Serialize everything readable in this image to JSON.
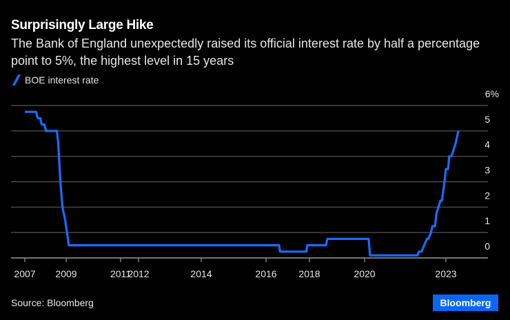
{
  "header": {
    "title": "Surprisingly Large Hike",
    "subtitle": "The Bank of England unexpectedly raised its official interest rate by half a percentage point to 5%, the highest level in 15 years"
  },
  "footer": {
    "source": "Source: Bloomberg",
    "logo": "Bloomberg"
  },
  "chart_data": {
    "type": "line",
    "title": "Surprisingly Large Hike",
    "xlabel": "",
    "ylabel": "",
    "ylim": [
      0,
      6
    ],
    "yticks": [
      0,
      1,
      2,
      3,
      4,
      5,
      6
    ],
    "ytick_labels": [
      "0",
      "1",
      "2",
      "3",
      "4",
      "5",
      "6%"
    ],
    "xticks": [
      {
        "label": "2007",
        "x": 2007.0
      },
      {
        "label": "2009",
        "x": 2009.0
      },
      {
        "label": "2011",
        "x": 2011.0
      },
      {
        "label": "2012",
        "x": 2012.0
      },
      {
        "label": "2014",
        "x": 2014.0
      },
      {
        "label": "2016",
        "x": 2016.0
      },
      {
        "label": "2018",
        "x": 2018.0
      },
      {
        "label": "2020",
        "x": 2020.0
      },
      {
        "label": "2023",
        "x": 2023.0
      }
    ],
    "grid": true,
    "legend": {
      "position": "top-left",
      "entries": [
        "BOE interest rate"
      ]
    },
    "color": "#1a6cff",
    "series": [
      {
        "name": "BOE interest rate",
        "points": [
          [
            2007.0,
            5.75
          ],
          [
            2007.55,
            5.75
          ],
          [
            2007.62,
            5.5
          ],
          [
            2007.75,
            5.5
          ],
          [
            2007.82,
            5.25
          ],
          [
            2007.95,
            5.25
          ],
          [
            2008.02,
            5.0
          ],
          [
            2008.55,
            5.0
          ],
          [
            2008.62,
            4.5
          ],
          [
            2008.72,
            3.0
          ],
          [
            2008.82,
            2.0
          ],
          [
            2008.95,
            1.5
          ],
          [
            2009.1,
            0.5
          ],
          [
            2016.6,
            0.5
          ],
          [
            2016.65,
            0.25
          ],
          [
            2017.85,
            0.25
          ],
          [
            2017.9,
            0.5
          ],
          [
            2018.6,
            0.5
          ],
          [
            2018.65,
            0.75
          ],
          [
            2020.15,
            0.75
          ],
          [
            2020.2,
            0.1
          ],
          [
            2021.95,
            0.1
          ],
          [
            2022.0,
            0.25
          ],
          [
            2022.1,
            0.25
          ],
          [
            2022.2,
            0.5
          ],
          [
            2022.3,
            0.75
          ],
          [
            2022.35,
            0.75
          ],
          [
            2022.45,
            1.0
          ],
          [
            2022.5,
            1.25
          ],
          [
            2022.6,
            1.25
          ],
          [
            2022.65,
            1.75
          ],
          [
            2022.8,
            2.25
          ],
          [
            2022.85,
            2.25
          ],
          [
            2022.95,
            3.0
          ],
          [
            2023.0,
            3.5
          ],
          [
            2023.08,
            3.5
          ],
          [
            2023.12,
            4.0
          ],
          [
            2023.2,
            4.0
          ],
          [
            2023.35,
            4.5
          ],
          [
            2023.45,
            5.0
          ]
        ]
      }
    ]
  }
}
